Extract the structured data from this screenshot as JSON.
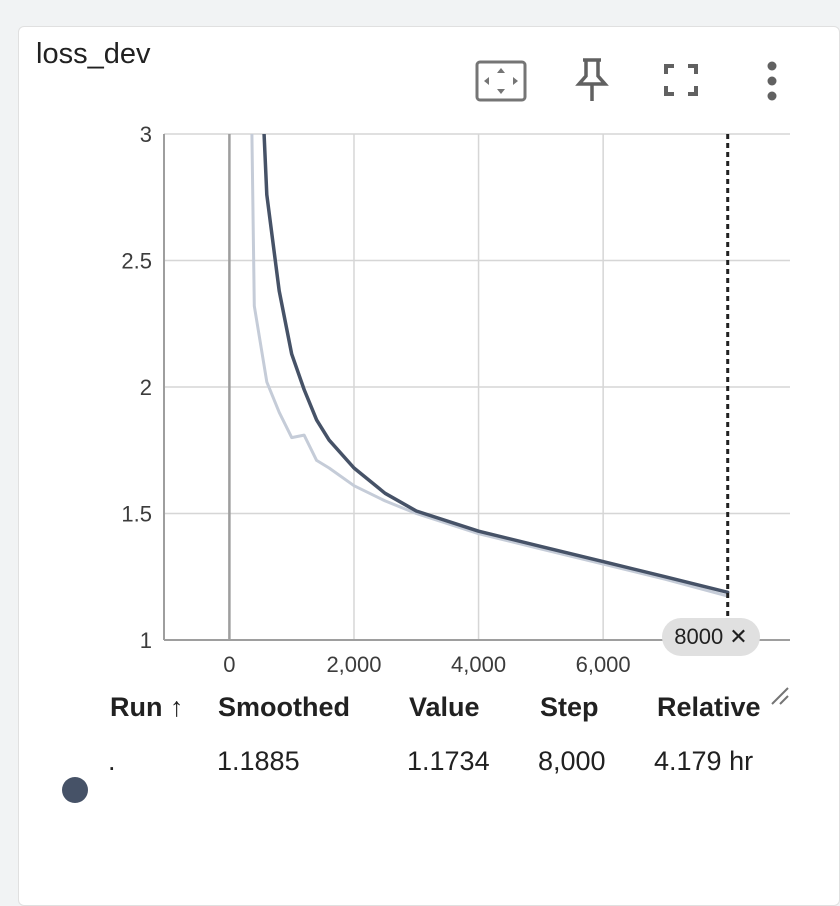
{
  "card": {
    "title": "loss_dev",
    "tools": {
      "fit_domain": "fit-domain-icon",
      "pin": "pin-icon",
      "fullscreen": "fullscreen-icon",
      "more": "more-vert-icon"
    }
  },
  "chart_data": {
    "type": "line",
    "xlim": [
      -1050,
      9000
    ],
    "ylim": [
      1.0,
      3.0
    ],
    "x_ticks": [
      {
        "value": 0,
        "label": "0"
      },
      {
        "value": 2000,
        "label": "2,000"
      },
      {
        "value": 4000,
        "label": "4,000"
      },
      {
        "value": 6000,
        "label": "6,000"
      }
    ],
    "y_ticks": [
      {
        "value": 3.0,
        "label": "3"
      },
      {
        "value": 2.5,
        "label": "2.5"
      },
      {
        "value": 2.0,
        "label": "2"
      },
      {
        "value": 1.5,
        "label": "1.5"
      },
      {
        "value": 1.0,
        "label": "1"
      }
    ],
    "grid": true,
    "cursor_step": 8000,
    "cursor_label": "8000",
    "series": [
      {
        "role": "raw",
        "color": "#c5ccd8",
        "points": [
          [
            350,
            3.2
          ],
          [
            400,
            2.32
          ],
          [
            600,
            2.02
          ],
          [
            800,
            1.9
          ],
          [
            1000,
            1.8
          ],
          [
            1200,
            1.81
          ],
          [
            1400,
            1.71
          ],
          [
            1600,
            1.68
          ],
          [
            2000,
            1.61
          ],
          [
            2500,
            1.55
          ],
          [
            3000,
            1.5
          ],
          [
            4000,
            1.42
          ],
          [
            5000,
            1.36
          ],
          [
            6000,
            1.3
          ],
          [
            7000,
            1.24
          ],
          [
            8000,
            1.1734
          ]
        ]
      },
      {
        "role": "smoothed",
        "color": "#465267",
        "points": [
          [
            520,
            3.2
          ],
          [
            600,
            2.76
          ],
          [
            800,
            2.38
          ],
          [
            1000,
            2.13
          ],
          [
            1200,
            1.99
          ],
          [
            1400,
            1.87
          ],
          [
            1600,
            1.79
          ],
          [
            2000,
            1.68
          ],
          [
            2500,
            1.58
          ],
          [
            3000,
            1.51
          ],
          [
            4000,
            1.43
          ],
          [
            5000,
            1.37
          ],
          [
            6000,
            1.31
          ],
          [
            7000,
            1.25
          ],
          [
            8000,
            1.1885
          ]
        ]
      }
    ]
  },
  "table": {
    "headers": {
      "run": "Run ↑",
      "smoothed": "Smoothed",
      "value": "Value",
      "step": "Step",
      "relative": "Relative"
    },
    "rows": [
      {
        "color": "#465267",
        "run": ".",
        "smoothed": "1.1885",
        "value": "1.1734",
        "step": "8,000",
        "relative": "4.179 hr"
      }
    ]
  }
}
